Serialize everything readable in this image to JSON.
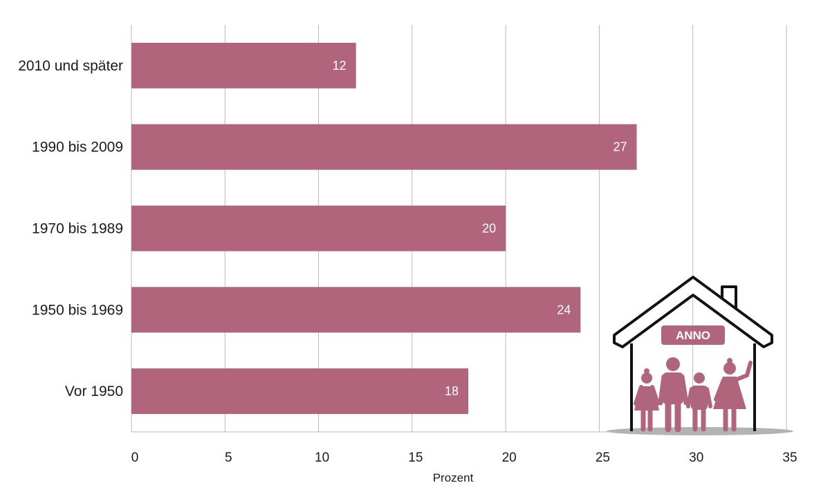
{
  "chart_data": {
    "type": "bar",
    "orientation": "horizontal",
    "categories": [
      "2010 und später",
      "1990 bis 2009",
      "1970 bis 1989",
      "1950 bis 1969",
      "Vor 1950"
    ],
    "values": [
      12,
      27,
      20,
      24,
      18
    ],
    "data_labels": [
      "12",
      "27",
      "20",
      "24",
      "18"
    ],
    "xlabel": "Prozent",
    "xlim": [
      0,
      35
    ],
    "xticks": [
      0,
      5,
      10,
      15,
      20,
      25,
      30,
      35
    ],
    "grid": "vertical",
    "bar_color": "#b1657d"
  },
  "illustration": {
    "icon": "house-family-icon",
    "badge_text": "ANNO",
    "accent_color": "#b1657d"
  }
}
